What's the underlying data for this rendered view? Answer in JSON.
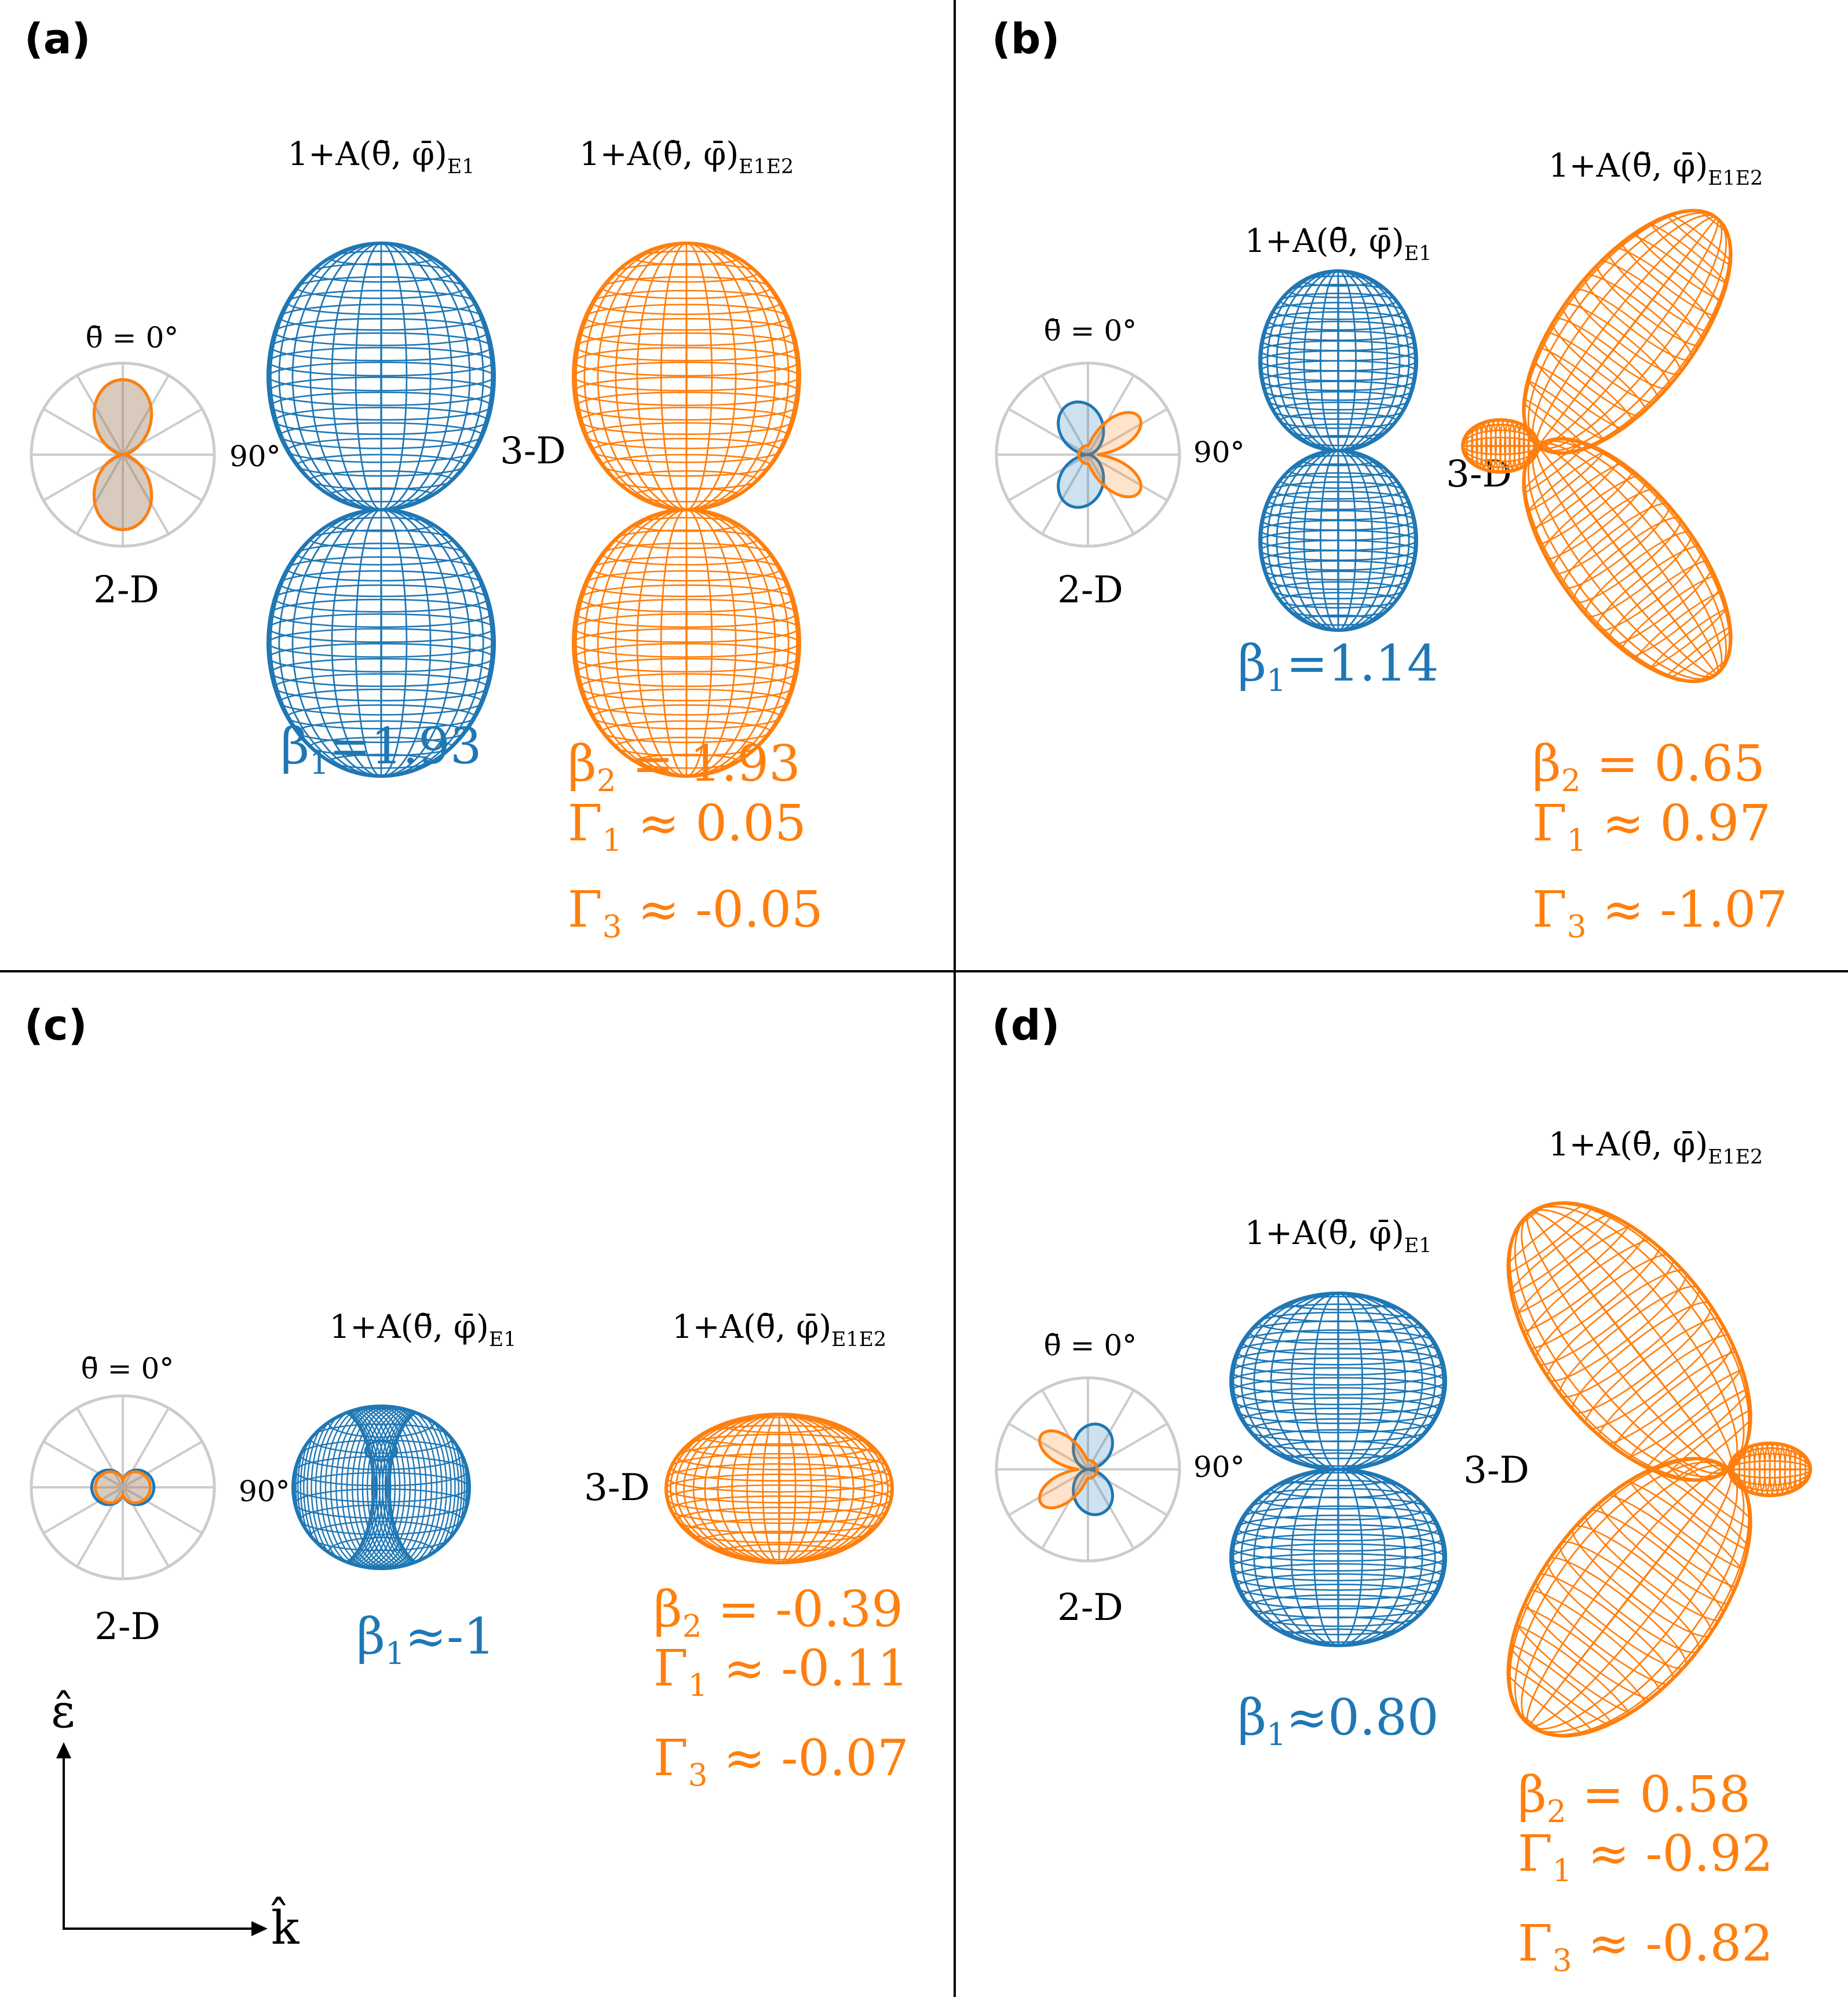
{
  "colors": {
    "blue": "#1f77b4",
    "orange": "#ff7f0e",
    "grey": "#cccccc",
    "divider": "#000000"
  },
  "labels": {
    "title_e1": "1+A(θ̄, φ̄)",
    "sub_e1": "E1",
    "title_e1e2": "1+A(θ̄, φ̄)",
    "sub_e1e2": "E1E2",
    "theta0": "θ̄ = 0°",
    "ninety": "90°",
    "three_d": "3-D",
    "two_d": "2-D",
    "beta1_sym": "β",
    "beta1_sub": "1",
    "beta2_sym": "β",
    "beta2_sub": "2",
    "gamma1_sym": "Γ",
    "gamma1_sub": "1",
    "gamma3_sym": "Γ",
    "gamma3_sub": "3"
  },
  "axes": {
    "epsilon": "ε̂",
    "k": "k̂"
  },
  "panels": [
    {
      "letter": "(a)",
      "e1": {
        "shape": "dumbbell",
        "tilt": 0,
        "beta_text": "=1.93"
      },
      "e1e2": {
        "shape": "dumbbell",
        "tilt": 0,
        "beta2_text": " = 1.93",
        "gamma1_text": " ≈ 0.05",
        "gamma3_text": " ≈ -0.05"
      }
    },
    {
      "letter": "(b)",
      "e1": {
        "shape": "dumbbell",
        "tilt": 0,
        "beta_text": "=1.14"
      },
      "e1e2": {
        "shape": "butterfly-right",
        "tilt": 0,
        "beta2_text": " = 0.65",
        "gamma1_text": " ≈ 0.97",
        "gamma3_text": " ≈ -1.07"
      }
    },
    {
      "letter": "(c)",
      "e1": {
        "shape": "torus",
        "tilt": 0,
        "beta_text": "≈-1"
      },
      "e1e2": {
        "shape": "ellipsoid",
        "tilt": 0,
        "beta2_text": " = -0.39",
        "gamma1_text": " ≈ -0.11",
        "gamma3_text": " ≈ -0.07"
      }
    },
    {
      "letter": "(d)",
      "e1": {
        "shape": "dumbbell",
        "tilt": 0,
        "beta_text": "≈0.80"
      },
      "e1e2": {
        "shape": "butterfly-left",
        "tilt": 0,
        "beta2_text": " =  0.58",
        "gamma1_text": " ≈ -0.92",
        "gamma3_text": " ≈ -0.82"
      }
    }
  ]
}
